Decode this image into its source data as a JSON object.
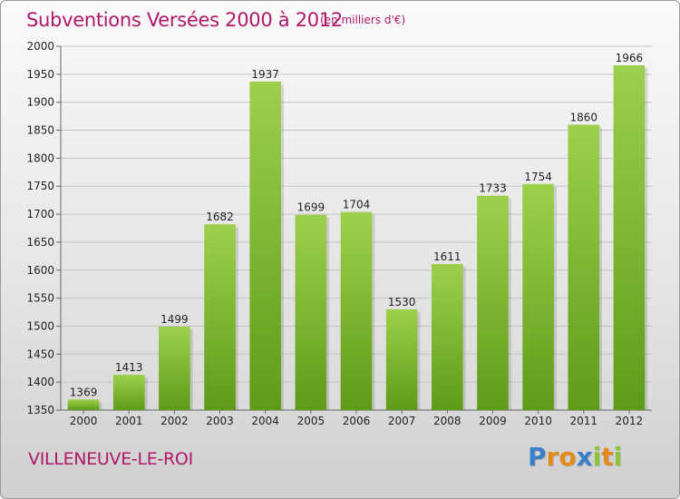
{
  "header": {
    "title": "Subventions Versées 2000 à 2012",
    "subtitle": "(en milliers d'€)"
  },
  "footer": {
    "commune": "VILLENEUVE-LE-ROI",
    "logo_letters": [
      "P",
      "r",
      "o",
      "x",
      "i",
      "t",
      "i"
    ],
    "logo_colors": [
      "#3a7fc8",
      "#e38a1c",
      "#e38a1c",
      "#3a7fc8",
      "#8cc43a",
      "#e38a1c",
      "#8cc43a"
    ]
  },
  "chart_data": {
    "type": "bar",
    "title": "Subventions Versées 2000 à 2012",
    "subtitle": "(en milliers d'€)",
    "categories": [
      "2000",
      "2001",
      "2002",
      "2003",
      "2004",
      "2005",
      "2006",
      "2007",
      "2008",
      "2009",
      "2010",
      "2011",
      "2012"
    ],
    "values": [
      1369,
      1413,
      1499,
      1682,
      1937,
      1699,
      1704,
      1530,
      1611,
      1733,
      1754,
      1860,
      1966
    ],
    "ylim": [
      1350,
      2000
    ],
    "yticks": [
      1350,
      1400,
      1450,
      1500,
      1550,
      1600,
      1650,
      1700,
      1750,
      1800,
      1850,
      1900,
      1950,
      2000
    ],
    "grid": true,
    "bar_color_top": "#9dd04d",
    "bar_color_bottom": "#5e9c17"
  }
}
